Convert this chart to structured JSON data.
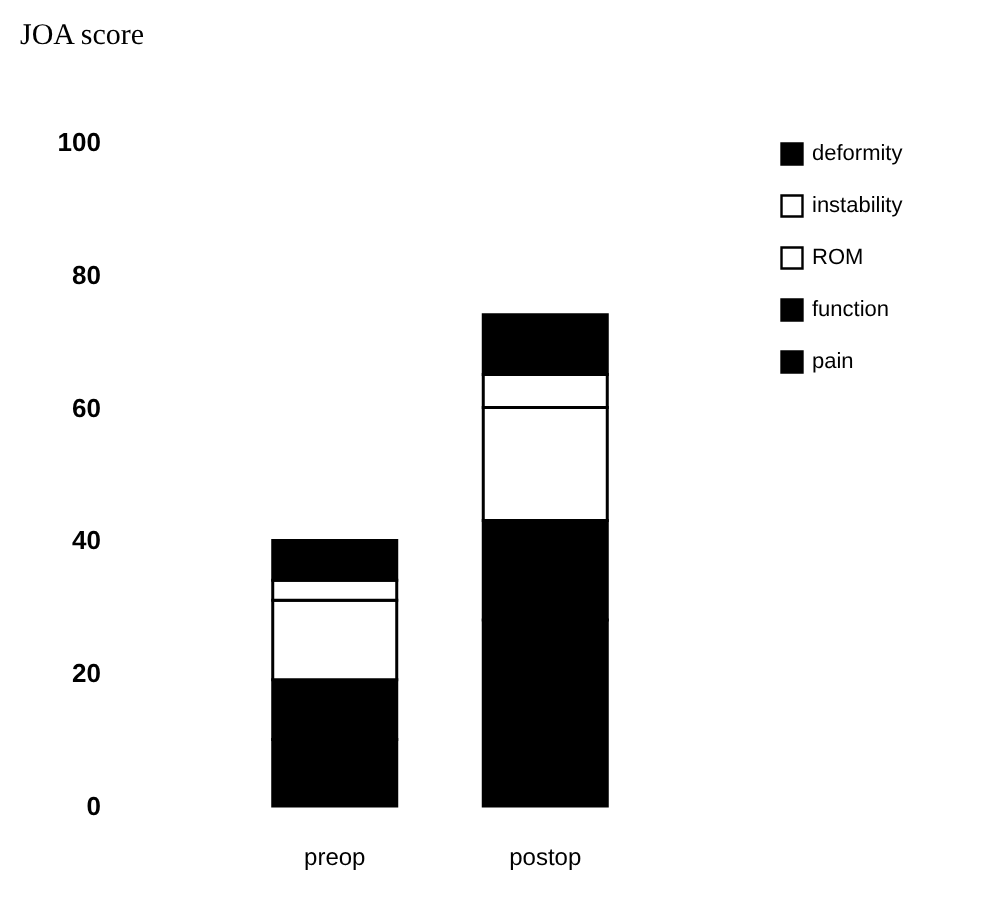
{
  "chart_data": {
    "type": "bar",
    "title": "JOA score",
    "categories": [
      "preop",
      "postop"
    ],
    "stacked": true,
    "ylim": [
      0,
      100
    ],
    "yticks": [
      0,
      20,
      40,
      60,
      80,
      100
    ],
    "grid": false,
    "legend": "top right",
    "series": [
      {
        "name": "pain",
        "color": "#000000",
        "values": [
          10,
          28
        ]
      },
      {
        "name": "function",
        "color": "#000000",
        "values": [
          9,
          15
        ]
      },
      {
        "name": "ROM",
        "color": "#ffffff",
        "values": [
          12,
          17
        ]
      },
      {
        "name": "instability",
        "color": "#ffffff",
        "values": [
          3,
          5
        ]
      },
      {
        "name": "deformity",
        "color": "#000000",
        "values": [
          6,
          9
        ]
      }
    ]
  }
}
